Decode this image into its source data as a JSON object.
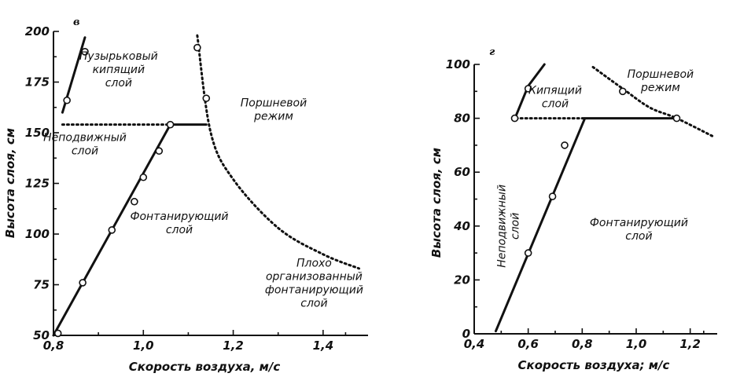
{
  "chart_data": [
    {
      "panel_letter": "в",
      "type": "line",
      "xlabel": "Скорость воздуха, м/с",
      "ylabel": "Высота слоя, см",
      "xlim": [
        0.8,
        1.5
      ],
      "ylim": [
        50,
        200
      ],
      "x_ticks": [
        "0,8",
        "1,0",
        "1,2",
        "1,4"
      ],
      "x_tick_values": [
        0.8,
        1.0,
        1.2,
        1.4
      ],
      "y_ticks": [
        "50",
        "75",
        "100",
        "125",
        "150",
        "175",
        "200"
      ],
      "y_tick_values": [
        50,
        75,
        100,
        125,
        150,
        175,
        200
      ],
      "series": [
        {
          "style": "solid",
          "x": [
            0.8,
            1.06,
            1.14
          ],
          "y": [
            50,
            154,
            154
          ]
        },
        {
          "style": "solid",
          "x": [
            0.82,
            0.87
          ],
          "y": [
            160,
            197
          ]
        },
        {
          "style": "dotted",
          "x": [
            0.82,
            1.06
          ],
          "y": [
            154,
            154
          ]
        },
        {
          "style": "dotted",
          "x": [
            1.12,
            1.15,
            1.2,
            1.3,
            1.4,
            1.48
          ],
          "y": [
            198,
            150,
            127,
            103,
            90,
            83
          ]
        }
      ],
      "points": [
        {
          "x": 0.81,
          "y": 51
        },
        {
          "x": 0.865,
          "y": 76
        },
        {
          "x": 0.93,
          "y": 102
        },
        {
          "x": 0.98,
          "y": 116
        },
        {
          "x": 1.0,
          "y": 128
        },
        {
          "x": 1.035,
          "y": 141
        },
        {
          "x": 1.06,
          "y": 154
        },
        {
          "x": 0.83,
          "y": 166
        },
        {
          "x": 0.87,
          "y": 190
        },
        {
          "x": 1.12,
          "y": 192
        },
        {
          "x": 1.14,
          "y": 167
        }
      ],
      "annotations": [
        {
          "lines": [
            "Пузырьковый",
            "кипящий",
            "слой"
          ],
          "x": 0.945,
          "y": 186
        },
        {
          "lines": [
            "Неподвижный",
            "слой"
          ],
          "x": 0.87,
          "y": 146
        },
        {
          "lines": [
            "Поршневой",
            "режим"
          ],
          "x": 1.29,
          "y": 163
        },
        {
          "lines": [
            "Фонтанирующий",
            "слой"
          ],
          "x": 1.08,
          "y": 107
        },
        {
          "lines": [
            "Плохо",
            "организованный",
            "фонтанирующий",
            "слой"
          ],
          "x": 1.38,
          "y": 84
        }
      ]
    },
    {
      "panel_letter": "г",
      "type": "line",
      "xlabel": "Скорость воздуха; м/с",
      "ylabel": "Высота слоя, см",
      "xlim": [
        0.4,
        1.3
      ],
      "ylim": [
        0,
        100
      ],
      "x_ticks": [
        "0,4",
        "0,6",
        "0,8",
        "1,0",
        "1,2"
      ],
      "x_tick_values": [
        0.4,
        0.6,
        0.8,
        1.0,
        1.2
      ],
      "y_ticks": [
        "0",
        "20",
        "40",
        "60",
        "80",
        "100"
      ],
      "y_tick_values": [
        0,
        20,
        40,
        60,
        80,
        100
      ],
      "series": [
        {
          "style": "solid",
          "x": [
            0.48,
            0.81,
            1.15
          ],
          "y": [
            1,
            80,
            80
          ]
        },
        {
          "style": "solid",
          "x": [
            0.555,
            0.6,
            0.66
          ],
          "y": [
            81,
            92,
            100
          ]
        },
        {
          "style": "dotted",
          "x": [
            0.555,
            0.81
          ],
          "y": [
            80,
            80
          ]
        },
        {
          "style": "dotted",
          "x": [
            0.84,
            0.95,
            1.05,
            1.15,
            1.29
          ],
          "y": [
            99,
            91,
            84,
            80,
            73
          ]
        }
      ],
      "points": [
        {
          "x": 0.55,
          "y": 80
        },
        {
          "x": 0.6,
          "y": 30
        },
        {
          "x": 0.6,
          "y": 91
        },
        {
          "x": 0.69,
          "y": 51
        },
        {
          "x": 0.735,
          "y": 70
        },
        {
          "x": 0.95,
          "y": 90
        },
        {
          "x": 1.15,
          "y": 80
        }
      ],
      "annotations": [
        {
          "lines": [
            "Кипящий",
            "слой"
          ],
          "x": 0.7,
          "y": 89
        },
        {
          "lines": [
            "Поршневой",
            "режим"
          ],
          "x": 1.09,
          "y": 95
        },
        {
          "lines": [
            "Фонтанирующий",
            "слой"
          ],
          "x": 1.01,
          "y": 40
        },
        {
          "lines": [
            "Неподвижный",
            "слой"
          ],
          "x": 0.515,
          "y": 40,
          "rotate": true
        }
      ]
    }
  ]
}
